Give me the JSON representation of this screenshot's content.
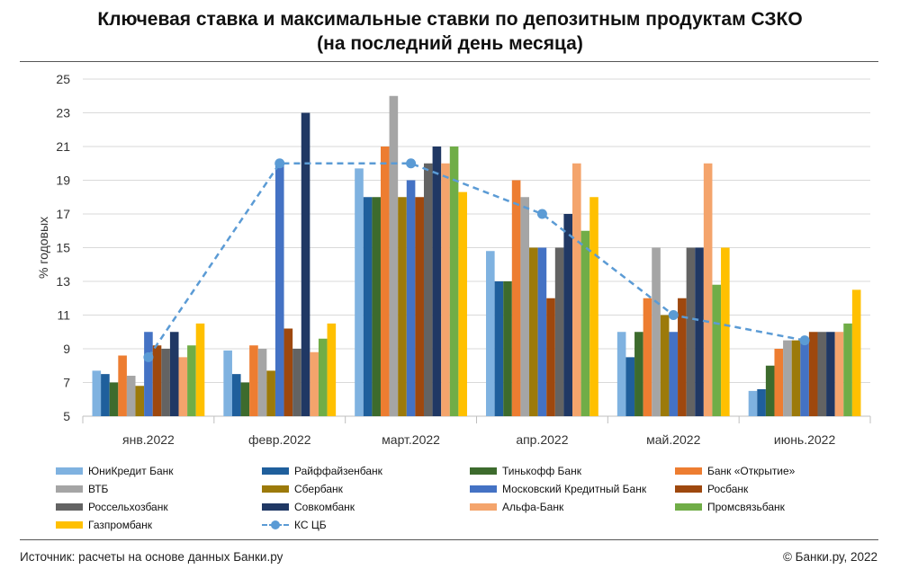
{
  "title_line1": "Ключевая ставка и максимальные ставки по депозитным продуктам СЗКО",
  "title_line2": "(на последний день месяца)",
  "source": "Источник: расчеты на основе данных Банки.ру",
  "copyright": "© Банки.ру, 2022",
  "chart_data": {
    "type": "bar",
    "ylabel": "% годовых",
    "xlabel": "",
    "ylim": [
      5,
      25
    ],
    "yticks": [
      5,
      7,
      9,
      11,
      13,
      15,
      17,
      19,
      21,
      23,
      25
    ],
    "grid": true,
    "legend_position": "bottom",
    "categories": [
      "янв.2022",
      "февр.2022",
      "март.2022",
      "апр.2022",
      "май.2022",
      "июнь.2022"
    ],
    "series": [
      {
        "name": "ЮниКредит Банк",
        "color": "#7fb2e0",
        "values": [
          7.7,
          8.9,
          19.7,
          14.8,
          10.0,
          6.5
        ]
      },
      {
        "name": "Райффайзенбанк",
        "color": "#1f5f9c",
        "values": [
          7.5,
          7.5,
          18.0,
          13.0,
          8.5,
          6.6
        ]
      },
      {
        "name": "Тинькофф Банк",
        "color": "#3d6b2d",
        "values": [
          7.0,
          7.0,
          18.0,
          13.0,
          10.0,
          8.0
        ]
      },
      {
        "name": "Банк «Открытие»",
        "color": "#ed7d31",
        "values": [
          8.6,
          9.2,
          21.0,
          19.0,
          12.0,
          9.0
        ]
      },
      {
        "name": "ВТБ",
        "color": "#a5a5a5",
        "values": [
          7.4,
          9.0,
          24.0,
          18.0,
          15.0,
          9.5
        ]
      },
      {
        "name": "Сбербанк",
        "color": "#9c7a0a",
        "values": [
          6.8,
          7.7,
          18.0,
          15.0,
          11.0,
          9.5
        ]
      },
      {
        "name": "Московский Кредитный Банк",
        "color": "#4472c4",
        "values": [
          10.0,
          20.0,
          19.0,
          15.0,
          10.0,
          9.5
        ]
      },
      {
        "name": "Росбанк",
        "color": "#9e480e",
        "values": [
          9.2,
          10.2,
          18.0,
          12.0,
          12.0,
          10.0
        ]
      },
      {
        "name": "Россельхозбанк",
        "color": "#636363",
        "values": [
          9.0,
          9.0,
          20.0,
          15.0,
          15.0,
          10.0
        ]
      },
      {
        "name": "Совкомбанк",
        "color": "#203864",
        "values": [
          10.0,
          23.0,
          21.0,
          17.0,
          15.0,
          10.0
        ]
      },
      {
        "name": "Альфа-Банк",
        "color": "#f4a46c",
        "values": [
          8.5,
          8.8,
          20.0,
          20.0,
          20.0,
          10.0
        ]
      },
      {
        "name": "Промсвязьбанк",
        "color": "#70ad47",
        "values": [
          9.2,
          9.6,
          21.0,
          16.0,
          12.8,
          10.5
        ]
      },
      {
        "name": "Газпромбанк",
        "color": "#ffc000",
        "values": [
          10.5,
          10.5,
          18.3,
          18.0,
          15.0,
          12.5
        ]
      }
    ],
    "line_series": {
      "name": "КС ЦБ",
      "color": "#5b9bd5",
      "style": "dashed-with-markers",
      "values": [
        8.5,
        20.0,
        20.0,
        17.0,
        11.0,
        9.5
      ]
    }
  }
}
